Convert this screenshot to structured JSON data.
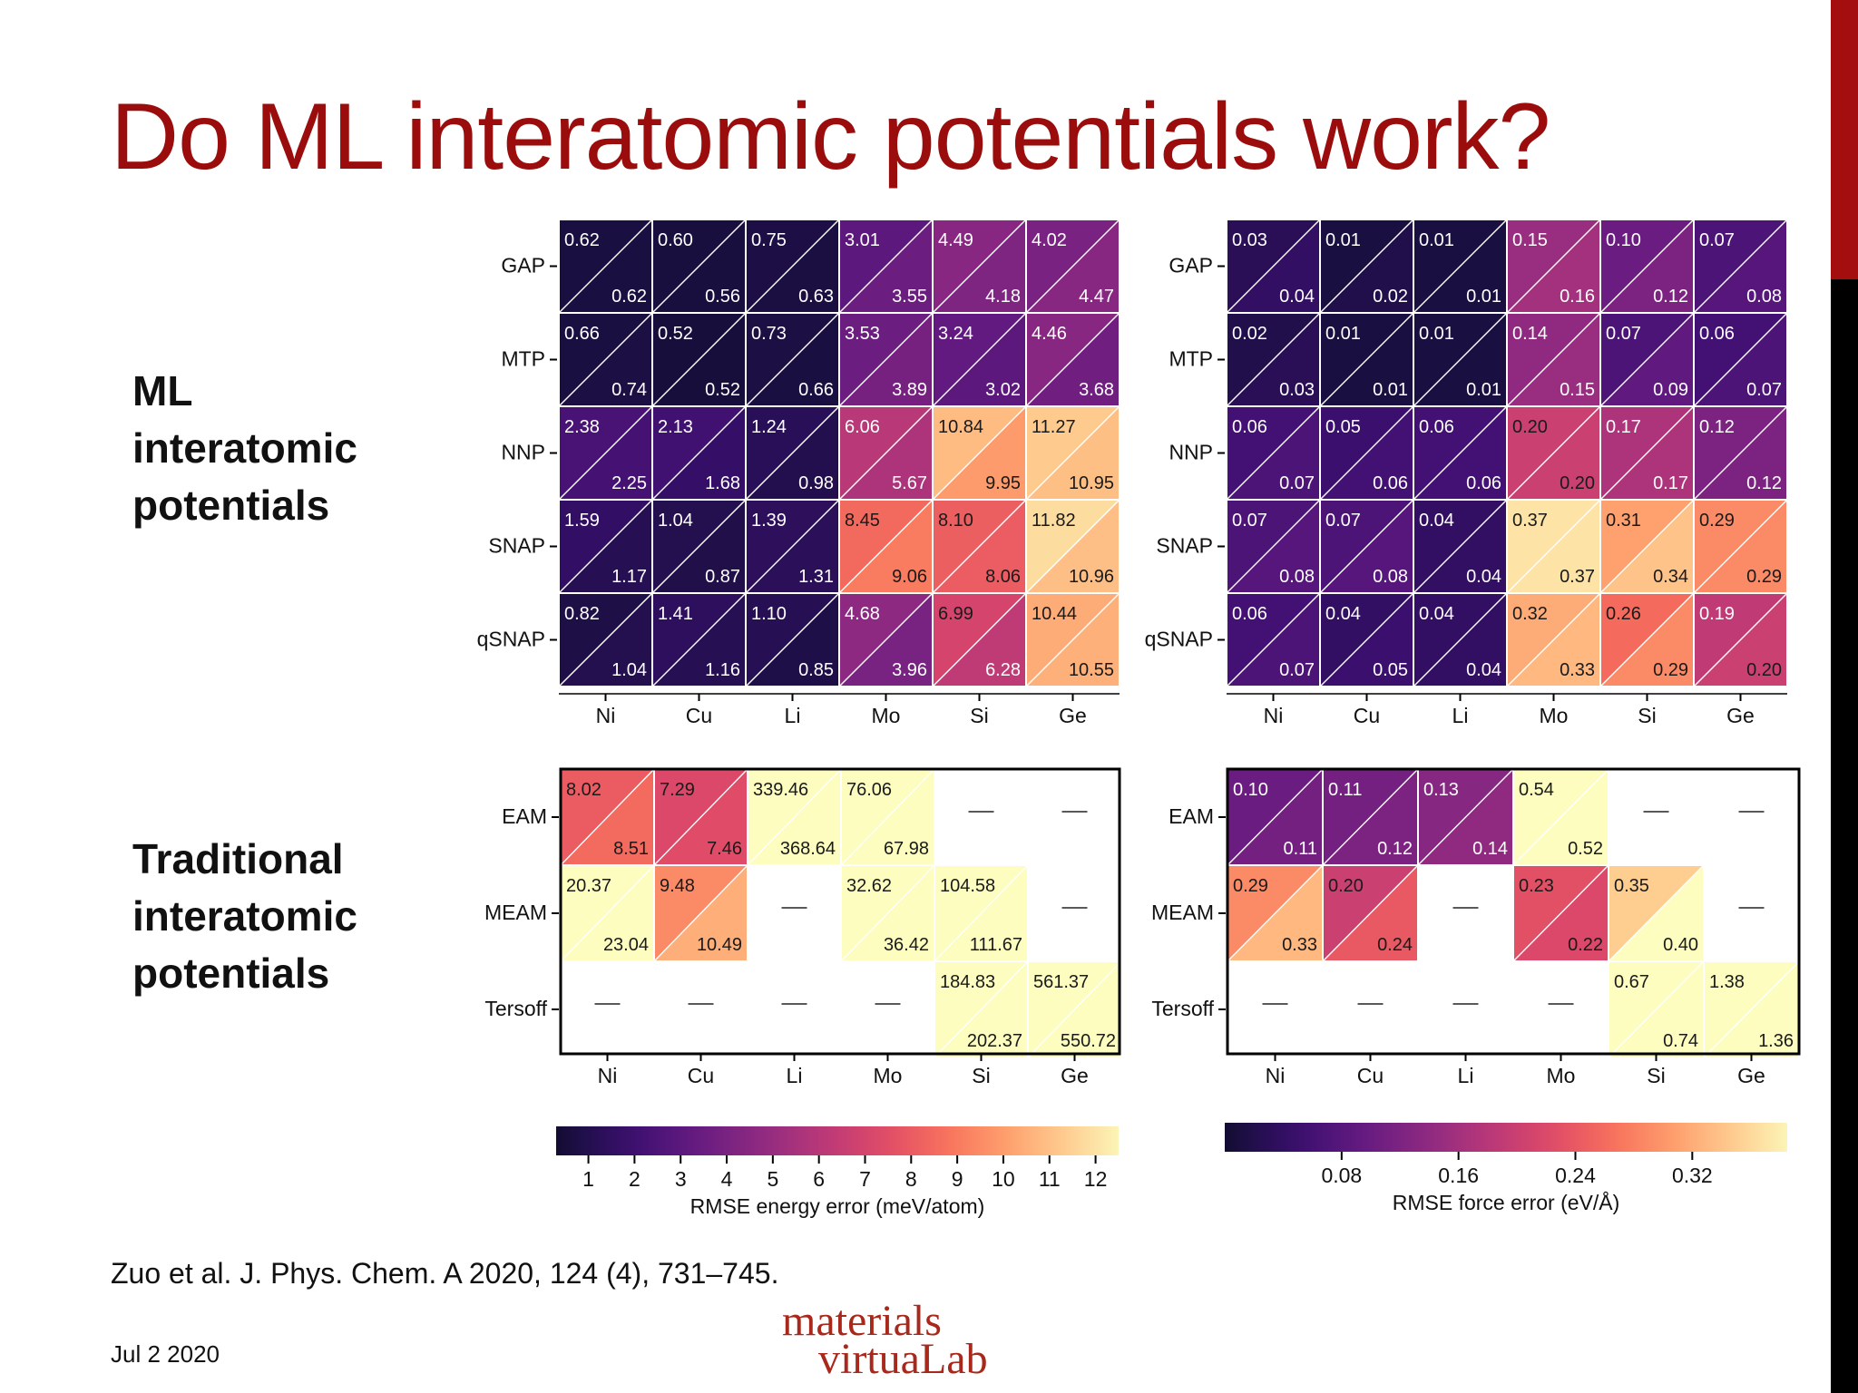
{
  "slide": {
    "title": "Do ML interatomic potentials work?",
    "ml_label": [
      "ML",
      "interatomic",
      "potentials"
    ],
    "trad_label": [
      "Traditional",
      "interatomic",
      "potentials"
    ],
    "citation": "Zuo et al. J. Phys. Chem. A 2020, 124 (4), 731–745.",
    "date": "Jul 2 2020",
    "logo": [
      "materials",
      "virtuaLab"
    ]
  },
  "colors": {
    "title": "#9b0d0d",
    "accent": "#a50e0e",
    "logo": "#a8291c"
  },
  "chart_data": [
    {
      "type": "heatmap",
      "panel": "ML energy",
      "colormap": "magma",
      "vmin": 0.3,
      "vmax": 12.5,
      "categories": [
        "Ni",
        "Cu",
        "Li",
        "Mo",
        "Si",
        "Ge"
      ],
      "rows": [
        "GAP",
        "MTP",
        "NNP",
        "SNAP",
        "qSNAP"
      ],
      "cells": [
        [
          [
            0.62,
            0.62
          ],
          [
            0.6,
            0.56
          ],
          [
            0.75,
            0.63
          ],
          [
            3.01,
            3.55
          ],
          [
            4.49,
            4.18
          ],
          [
            4.02,
            4.47
          ]
        ],
        [
          [
            0.66,
            0.74
          ],
          [
            0.52,
            0.52
          ],
          [
            0.73,
            0.66
          ],
          [
            3.53,
            3.89
          ],
          [
            3.24,
            3.02
          ],
          [
            4.46,
            3.68
          ]
        ],
        [
          [
            2.38,
            2.25
          ],
          [
            2.13,
            1.68
          ],
          [
            1.24,
            0.98
          ],
          [
            6.06,
            5.67
          ],
          [
            10.84,
            9.95
          ],
          [
            11.27,
            10.95
          ]
        ],
        [
          [
            1.59,
            1.17
          ],
          [
            1.04,
            0.87
          ],
          [
            1.39,
            1.31
          ],
          [
            8.45,
            9.06
          ],
          [
            8.1,
            8.06
          ],
          [
            11.82,
            10.96
          ]
        ],
        [
          [
            0.82,
            1.04
          ],
          [
            1.41,
            1.16
          ],
          [
            1.1,
            0.85
          ],
          [
            4.68,
            3.96
          ],
          [
            6.99,
            6.28
          ],
          [
            10.44,
            10.55
          ]
        ]
      ]
    },
    {
      "type": "heatmap",
      "panel": "ML force",
      "colormap": "magma",
      "vmin": 0.0,
      "vmax": 0.385,
      "categories": [
        "Ni",
        "Cu",
        "Li",
        "Mo",
        "Si",
        "Ge"
      ],
      "rows": [
        "GAP",
        "MTP",
        "NNP",
        "SNAP",
        "qSNAP"
      ],
      "cells": [
        [
          [
            0.03,
            0.04
          ],
          [
            0.01,
            0.02
          ],
          [
            0.01,
            0.01
          ],
          [
            0.15,
            0.16
          ],
          [
            0.1,
            0.12
          ],
          [
            0.07,
            0.08
          ]
        ],
        [
          [
            0.02,
            0.03
          ],
          [
            0.01,
            0.01
          ],
          [
            0.01,
            0.01
          ],
          [
            0.14,
            0.15
          ],
          [
            0.07,
            0.09
          ],
          [
            0.06,
            0.07
          ]
        ],
        [
          [
            0.06,
            0.07
          ],
          [
            0.05,
            0.06
          ],
          [
            0.06,
            0.06
          ],
          [
            0.2,
            0.2
          ],
          [
            0.17,
            0.17
          ],
          [
            0.12,
            0.12
          ]
        ],
        [
          [
            0.07,
            0.08
          ],
          [
            0.07,
            0.08
          ],
          [
            0.04,
            0.04
          ],
          [
            0.37,
            0.37
          ],
          [
            0.31,
            0.34
          ],
          [
            0.29,
            0.29
          ]
        ],
        [
          [
            0.06,
            0.07
          ],
          [
            0.04,
            0.05
          ],
          [
            0.04,
            0.04
          ],
          [
            0.32,
            0.33
          ],
          [
            0.26,
            0.29
          ],
          [
            0.19,
            0.2
          ]
        ]
      ]
    },
    {
      "type": "heatmap",
      "panel": "Traditional energy",
      "colormap": "magma",
      "vmin": 0.3,
      "vmax": 12.5,
      "categories": [
        "Ni",
        "Cu",
        "Li",
        "Mo",
        "Si",
        "Ge"
      ],
      "rows": [
        "EAM",
        "MEAM",
        "Tersoff"
      ],
      "cells": [
        [
          [
            8.02,
            8.51
          ],
          [
            7.29,
            7.46
          ],
          [
            339.46,
            368.64
          ],
          [
            76.06,
            67.98
          ],
          null,
          null
        ],
        [
          [
            20.37,
            23.04
          ],
          [
            9.48,
            10.49
          ],
          null,
          [
            32.62,
            36.42
          ],
          [
            104.58,
            111.67
          ],
          null
        ],
        [
          null,
          null,
          null,
          null,
          [
            184.83,
            202.37
          ],
          [
            561.37,
            550.72
          ]
        ]
      ]
    },
    {
      "type": "heatmap",
      "panel": "Traditional force",
      "colormap": "magma",
      "vmin": 0.0,
      "vmax": 0.385,
      "categories": [
        "Ni",
        "Cu",
        "Li",
        "Mo",
        "Si",
        "Ge"
      ],
      "rows": [
        "EAM",
        "MEAM",
        "Tersoff"
      ],
      "cells": [
        [
          [
            0.1,
            0.11
          ],
          [
            0.11,
            0.12
          ],
          [
            0.13,
            0.14
          ],
          [
            0.54,
            0.52
          ],
          null,
          null
        ],
        [
          [
            0.29,
            0.33
          ],
          [
            0.2,
            0.24
          ],
          null,
          [
            0.23,
            0.22
          ],
          [
            0.35,
            0.4
          ],
          null
        ],
        [
          null,
          null,
          null,
          null,
          [
            0.67,
            0.74
          ],
          [
            1.38,
            1.36
          ]
        ]
      ]
    }
  ],
  "colorbars": [
    {
      "label": "RMSE energy error (meV/atom)",
      "vmin": 0.3,
      "vmax": 12.5,
      "ticks": [
        1,
        2,
        3,
        4,
        5,
        6,
        7,
        8,
        9,
        10,
        11,
        12
      ],
      "tick_labels": [
        "1",
        "2",
        "3",
        "4",
        "5",
        "6",
        "7",
        "8",
        "9",
        "10",
        "11",
        "12"
      ]
    },
    {
      "label": "RMSE force error (eV/Å)",
      "vmin": 0.0,
      "vmax": 0.385,
      "ticks": [
        0.08,
        0.16,
        0.24,
        0.32
      ],
      "tick_labels": [
        "0.08",
        "0.16",
        "0.24",
        "0.32"
      ]
    }
  ],
  "missing_symbol": "—"
}
